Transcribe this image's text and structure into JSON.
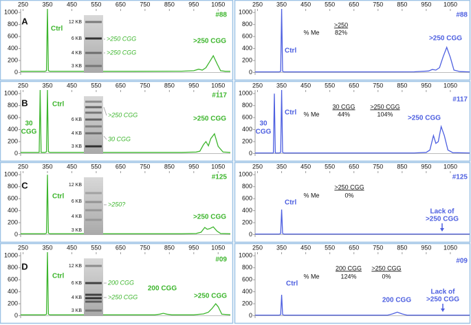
{
  "chart_data": [
    {
      "type": "line",
      "label": "A",
      "sample": "#88",
      "x": [
        240,
        300,
        340,
        346,
        350,
        354,
        360,
        500,
        700,
        900,
        950,
        970,
        985,
        1000,
        1015,
        1030,
        1045,
        1060,
        1080,
        1100
      ],
      "series": [
        {
          "color": "#3cb52c",
          "values": [
            20,
            20,
            20,
            30,
            1060,
            30,
            20,
            20,
            20,
            22,
            30,
            55,
            40,
            80,
            180,
            280,
            150,
            30,
            20,
            20
          ]
        }
      ],
      "xlim": [
        240,
        1100
      ],
      "ylim": [
        -40,
        1060
      ],
      "xticks": [
        250,
        350,
        450,
        550,
        650,
        750,
        850,
        950,
        1050
      ],
      "yticks": [
        0,
        200,
        400,
        600,
        800,
        1000
      ],
      "annotations": [
        "Ctrl",
        ">250 CGG"
      ],
      "gel": {
        "markers": [
          "12 KB",
          "6 KB",
          "4 KB",
          "3 KB"
        ],
        "notes": [
          ">250 CGG",
          ">250 CGG"
        ]
      }
    },
    {
      "type": "line",
      "sample": "#88",
      "x": [
        240,
        300,
        340,
        346,
        350,
        354,
        360,
        500,
        700,
        900,
        960,
        975,
        990,
        1005,
        1020,
        1035,
        1050,
        1065,
        1090,
        1130
      ],
      "series": [
        {
          "color": "#4d5fe0",
          "values": [
            10,
            10,
            10,
            20,
            1060,
            20,
            10,
            10,
            10,
            12,
            25,
            50,
            40,
            80,
            260,
            420,
            250,
            40,
            15,
            10
          ]
        }
      ],
      "xlim": [
        240,
        1130
      ],
      "ylim": [
        -40,
        1060
      ],
      "xticks": [
        250,
        350,
        450,
        550,
        650,
        750,
        850,
        950,
        1050
      ],
      "yticks": [
        0,
        200,
        400,
        600,
        800,
        1000
      ],
      "annotations": [
        "Ctrl",
        ">250 CGG"
      ],
      "methylation": {
        "heading": "% Me",
        "columns": [
          {
            "name": ">250",
            "value": "82%"
          }
        ]
      }
    },
    {
      "type": "line",
      "label": "B",
      "sample": "#117",
      "x": [
        240,
        300,
        316,
        320,
        324,
        340,
        346,
        350,
        354,
        360,
        600,
        900,
        960,
        975,
        990,
        1000,
        1010,
        1020,
        1035,
        1050,
        1070,
        1100
      ],
      "series": [
        {
          "color": "#3cb52c",
          "values": [
            20,
            20,
            20,
            1060,
            20,
            20,
            30,
            1060,
            30,
            20,
            20,
            20,
            25,
            40,
            150,
            200,
            130,
            250,
            330,
            120,
            25,
            20
          ]
        }
      ],
      "xlim": [
        240,
        1100
      ],
      "ylim": [
        -40,
        1060
      ],
      "xticks": [
        250,
        350,
        450,
        550,
        650,
        750,
        850,
        950,
        1050
      ],
      "yticks": [
        0,
        200,
        400,
        600,
        800,
        1000
      ],
      "annotations": [
        "30",
        "CGG",
        "Ctrl",
        ">250 CGG"
      ],
      "gel": {
        "markers": [
          "6 KB",
          "4 KB",
          "3 KB"
        ],
        "notes": [
          ">250 CGG",
          "30 CGG"
        ]
      }
    },
    {
      "type": "line",
      "sample": "#117",
      "x": [
        240,
        300,
        316,
        320,
        324,
        340,
        346,
        350,
        354,
        360,
        600,
        900,
        950,
        965,
        980,
        990,
        1000,
        1012,
        1025,
        1040,
        1060,
        1130
      ],
      "series": [
        {
          "color": "#4d5fe0",
          "values": [
            10,
            10,
            10,
            1000,
            10,
            10,
            20,
            1060,
            20,
            10,
            10,
            10,
            20,
            60,
            300,
            170,
            200,
            450,
            300,
            60,
            15,
            10
          ]
        }
      ],
      "xlim": [
        240,
        1130
      ],
      "ylim": [
        -40,
        1060
      ],
      "xticks": [
        250,
        350,
        450,
        550,
        650,
        750,
        850,
        950,
        1050
      ],
      "yticks": [
        0,
        200,
        400,
        600,
        800,
        1000
      ],
      "annotations": [
        "30",
        "CGG",
        "Ctrl",
        ">250 CGG"
      ],
      "methylation": {
        "heading": "% Me",
        "columns": [
          {
            "name": "30 CGG",
            "value": "44%"
          },
          {
            "name": ">250 CGG",
            "value": "104%"
          }
        ]
      }
    },
    {
      "type": "line",
      "label": "C",
      "sample": "#125",
      "x": [
        240,
        300,
        340,
        346,
        350,
        354,
        360,
        600,
        900,
        960,
        980,
        995,
        1005,
        1015,
        1030,
        1045,
        1060,
        1100
      ],
      "series": [
        {
          "color": "#3cb52c",
          "values": [
            15,
            15,
            15,
            25,
            1000,
            25,
            15,
            15,
            15,
            20,
            40,
            120,
            90,
            100,
            130,
            60,
            20,
            15
          ]
        }
      ],
      "xlim": [
        240,
        1100
      ],
      "ylim": [
        -40,
        1060
      ],
      "xticks": [
        250,
        350,
        450,
        550,
        650,
        750,
        850,
        950,
        1050
      ],
      "yticks": [
        0,
        200,
        400,
        600,
        800,
        1000
      ],
      "annotations": [
        "Ctrl",
        ">250 CGG"
      ],
      "gel": {
        "markers": [
          "12 KB",
          "6 KB",
          "4 KB",
          "3 KB"
        ],
        "notes": [
          ">250?"
        ]
      }
    },
    {
      "type": "line",
      "sample": "#125",
      "x": [
        240,
        300,
        340,
        346,
        350,
        354,
        360,
        600,
        900,
        1130
      ],
      "series": [
        {
          "color": "#4d5fe0",
          "values": [
            10,
            10,
            10,
            20,
            420,
            20,
            10,
            10,
            10,
            10
          ]
        }
      ],
      "xlim": [
        240,
        1130
      ],
      "ylim": [
        -40,
        1060
      ],
      "xticks": [
        250,
        350,
        450,
        550,
        650,
        750,
        850,
        950,
        1050
      ],
      "yticks": [
        0,
        200,
        400,
        600,
        800,
        1000
      ],
      "annotations": [
        "Ctrl",
        "Lack of",
        ">250 CGG"
      ],
      "methylation": {
        "heading": "% Me",
        "columns": [
          {
            "name": ">250 CGG",
            "value": "0%"
          }
        ]
      }
    },
    {
      "type": "line",
      "label": "D",
      "sample": "#09",
      "x": [
        240,
        300,
        340,
        346,
        350,
        354,
        360,
        600,
        790,
        810,
        825,
        840,
        860,
        950,
        990,
        1010,
        1025,
        1040,
        1050,
        1065,
        1100
      ],
      "series": [
        {
          "color": "#3cb52c",
          "values": [
            15,
            15,
            15,
            25,
            1060,
            25,
            15,
            15,
            15,
            25,
            40,
            25,
            15,
            15,
            30,
            60,
            120,
            200,
            150,
            25,
            15
          ]
        }
      ],
      "xlim": [
        240,
        1100
      ],
      "ylim": [
        -40,
        1060
      ],
      "xticks": [
        250,
        350,
        450,
        550,
        650,
        750,
        850,
        950,
        1050
      ],
      "yticks": [
        0,
        200,
        400,
        600,
        800,
        1000
      ],
      "annotations": [
        "Ctrl",
        "200 CGG",
        ">250 CGG"
      ],
      "gel": {
        "markers": [
          "12 KB",
          "6 KB",
          "4 KB",
          "3 KB"
        ],
        "notes": [
          "200 CGG",
          ">250 CGG"
        ]
      }
    },
    {
      "type": "line",
      "sample": "#09",
      "x": [
        240,
        300,
        340,
        346,
        350,
        354,
        360,
        600,
        790,
        810,
        830,
        850,
        870,
        950,
        1130
      ],
      "series": [
        {
          "color": "#4d5fe0",
          "values": [
            10,
            10,
            10,
            20,
            350,
            20,
            10,
            10,
            10,
            30,
            60,
            30,
            10,
            10,
            10
          ]
        }
      ],
      "xlim": [
        240,
        1130
      ],
      "ylim": [
        -40,
        1060
      ],
      "xticks": [
        250,
        350,
        450,
        550,
        650,
        750,
        850,
        950,
        1050
      ],
      "yticks": [
        0,
        200,
        400,
        600,
        800,
        1000
      ],
      "annotations": [
        "Ctrl",
        "200 CGG",
        "Lack of",
        ">250 CGG"
      ],
      "methylation": {
        "heading": "% Me",
        "columns": [
          {
            "name": "200 CGG",
            "value": "124%"
          },
          {
            "name": ">250 CGG",
            "value": "0%"
          }
        ]
      }
    }
  ]
}
